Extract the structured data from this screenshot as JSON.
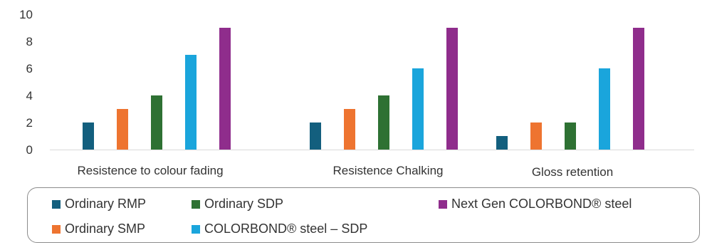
{
  "chart_data": {
    "type": "bar",
    "categories": [
      "Resistence to colour fading",
      "Resistence Chalking",
      "Gloss retention"
    ],
    "series": [
      {
        "name": "Ordinary RMP",
        "color": "#135f7e",
        "values": [
          2,
          2,
          1
        ]
      },
      {
        "name": "Ordinary SMP",
        "color": "#ee7430",
        "values": [
          3,
          3,
          2
        ]
      },
      {
        "name": "Ordinary SDP",
        "color": "#2e7133",
        "values": [
          4,
          4,
          2
        ]
      },
      {
        "name": "COLORBOND® steel – SDP",
        "color": "#1aa5dc",
        "values": [
          7,
          6,
          6
        ]
      },
      {
        "name": "Next Gen COLORBOND® steel",
        "color": "#8f2d8c",
        "values": [
          9,
          9,
          9
        ]
      }
    ],
    "yticks": [
      0,
      2,
      4,
      6,
      8,
      10
    ],
    "ylim": [
      0,
      10
    ],
    "grid": false,
    "legend_position": "bottom"
  }
}
